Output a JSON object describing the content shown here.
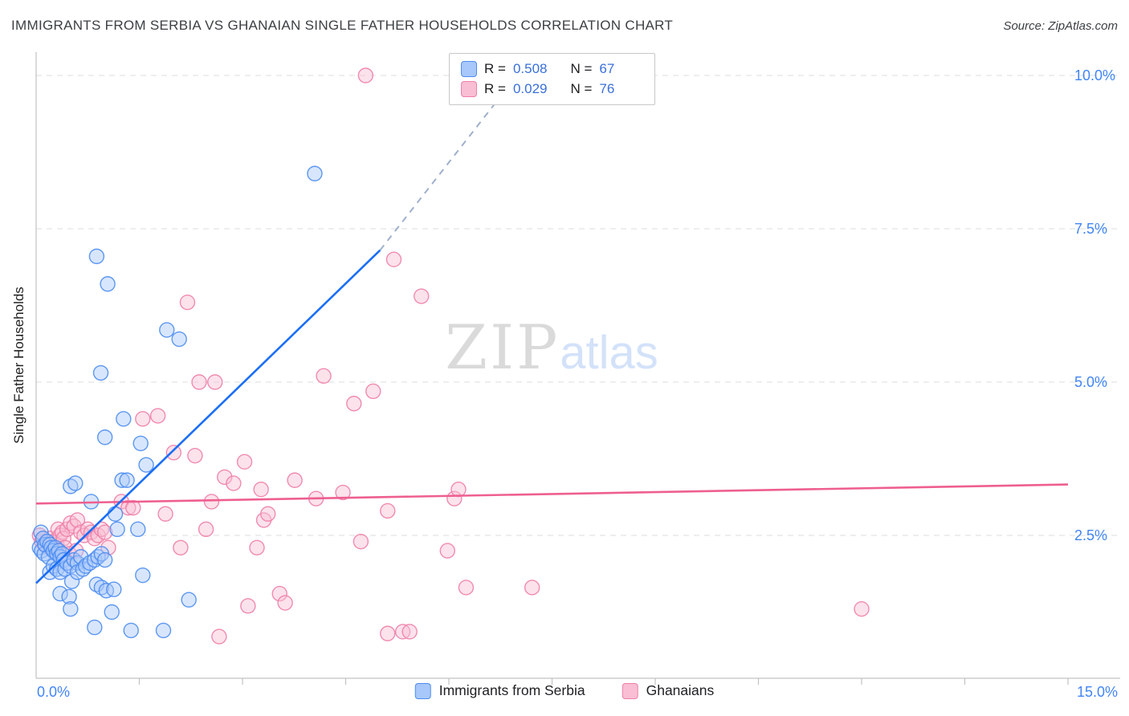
{
  "header": {
    "title": "IMMIGRANTS FROM SERBIA VS GHANAIAN SINGLE FATHER HOUSEHOLDS CORRELATION CHART",
    "source": "Source: ZipAtlas.com"
  },
  "watermark": {
    "part1": "ZIP",
    "part2": "atlas"
  },
  "axes": {
    "y_axis_label": "Single Father Households",
    "y_ticks": [
      {
        "value": 2.5,
        "label": "2.5%"
      },
      {
        "value": 5.0,
        "label": "5.0%"
      },
      {
        "value": 7.5,
        "label": "7.5%"
      },
      {
        "value": 10.0,
        "label": "10.0%"
      }
    ],
    "x_min_label": "0.0%",
    "x_max_label": "15.0%"
  },
  "legend_box": {
    "rows": [
      {
        "r_label": "R = ",
        "r_value": "0.508",
        "n_label": "N = ",
        "n_value": "67"
      },
      {
        "r_label": "R = ",
        "r_value": "0.029",
        "n_label": "N = ",
        "n_value": "76"
      }
    ]
  },
  "bottom_legend": {
    "items": [
      {
        "label": "Immigrants from Serbia"
      },
      {
        "label": "Ghanaians"
      }
    ]
  },
  "chart_data": {
    "type": "scatter",
    "title": "IMMIGRANTS FROM SERBIA VS GHANAIAN SINGLE FATHER HOUSEHOLDS CORRELATION CHART",
    "xlabel": "",
    "ylabel": "Single Father Households",
    "xlim": [
      0,
      15
    ],
    "ylim": [
      0,
      10.4
    ],
    "x_unit": "%",
    "y_unit": "%",
    "grid": true,
    "legend_position": "bottom",
    "x_tick_values": [
      1.5,
      3,
      4.5,
      6,
      7.5,
      9,
      10.5,
      12,
      13.5,
      15
    ],
    "series": [
      {
        "name": "Immigrants from Serbia",
        "R": 0.508,
        "N": 67,
        "marker_fill": "#a8c7fa",
        "marker_stroke": "#4d8df0",
        "trend": {
          "solid": [
            [
              0,
              1.72
            ],
            [
              5.0,
              7.15
            ]
          ],
          "dashed": [
            [
              5.0,
              7.15
            ],
            [
              7.2,
              10.3
            ]
          ],
          "color": "#1a6ef5",
          "dashed_color": "#9fb0cc"
        },
        "points": [
          [
            0.05,
            2.3
          ],
          [
            0.07,
            2.55
          ],
          [
            0.08,
            2.25
          ],
          [
            0.1,
            2.45
          ],
          [
            0.12,
            2.2
          ],
          [
            0.13,
            2.35
          ],
          [
            0.16,
            2.4
          ],
          [
            0.18,
            2.15
          ],
          [
            0.2,
            2.35
          ],
          [
            0.2,
            1.9
          ],
          [
            0.22,
            2.3
          ],
          [
            0.25,
            2.25
          ],
          [
            0.25,
            2.0
          ],
          [
            0.28,
            2.3
          ],
          [
            0.3,
            2.2
          ],
          [
            0.3,
            1.95
          ],
          [
            0.33,
            2.25
          ],
          [
            0.35,
            2.15
          ],
          [
            0.35,
            1.9
          ],
          [
            0.35,
            1.55
          ],
          [
            0.38,
            2.2
          ],
          [
            0.4,
            2.1
          ],
          [
            0.42,
            1.95
          ],
          [
            0.45,
            2.05
          ],
          [
            0.48,
            1.5
          ],
          [
            0.5,
            3.3
          ],
          [
            0.5,
            2.0
          ],
          [
            0.5,
            1.3
          ],
          [
            0.52,
            1.75
          ],
          [
            0.55,
            2.1
          ],
          [
            0.57,
            3.35
          ],
          [
            0.6,
            2.05
          ],
          [
            0.6,
            1.9
          ],
          [
            0.65,
            2.15
          ],
          [
            0.68,
            1.95
          ],
          [
            0.72,
            2.0
          ],
          [
            0.78,
            2.05
          ],
          [
            0.8,
            3.05
          ],
          [
            0.85,
            2.1
          ],
          [
            0.85,
            1.0
          ],
          [
            0.88,
            7.05
          ],
          [
            0.88,
            1.7
          ],
          [
            0.9,
            2.15
          ],
          [
            0.94,
            5.15
          ],
          [
            0.95,
            2.2
          ],
          [
            0.95,
            1.65
          ],
          [
            1.0,
            4.1
          ],
          [
            1.0,
            2.1
          ],
          [
            1.02,
            1.6
          ],
          [
            1.04,
            6.6
          ],
          [
            1.1,
            1.25
          ],
          [
            1.13,
            1.62
          ],
          [
            1.15,
            2.85
          ],
          [
            1.18,
            2.6
          ],
          [
            1.25,
            3.4
          ],
          [
            1.27,
            4.4
          ],
          [
            1.32,
            3.4
          ],
          [
            1.38,
            0.95
          ],
          [
            1.48,
            2.6
          ],
          [
            1.52,
            4.0
          ],
          [
            1.55,
            1.85
          ],
          [
            1.6,
            3.65
          ],
          [
            1.85,
            0.95
          ],
          [
            1.9,
            5.85
          ],
          [
            2.08,
            5.7
          ],
          [
            2.22,
            1.45
          ],
          [
            4.05,
            8.4
          ]
        ]
      },
      {
        "name": "Ghanaians",
        "R": 0.029,
        "N": 76,
        "marker_fill": "#f9bed3",
        "marker_stroke": "#ee7fa8",
        "trend": {
          "solid": [
            [
              0,
              3.02
            ],
            [
              15,
              3.33
            ]
          ],
          "color": "#ee5f90"
        },
        "points": [
          [
            0.05,
            2.5
          ],
          [
            0.08,
            2.4
          ],
          [
            0.1,
            2.45
          ],
          [
            0.12,
            2.35
          ],
          [
            0.15,
            2.4
          ],
          [
            0.18,
            2.3
          ],
          [
            0.2,
            2.45
          ],
          [
            0.22,
            2.35
          ],
          [
            0.25,
            2.4
          ],
          [
            0.28,
            2.3
          ],
          [
            0.3,
            2.35
          ],
          [
            0.32,
            2.6
          ],
          [
            0.35,
            2.5
          ],
          [
            0.38,
            2.55
          ],
          [
            0.4,
            2.45
          ],
          [
            0.42,
            2.3
          ],
          [
            0.45,
            2.6
          ],
          [
            0.48,
            2.2
          ],
          [
            0.5,
            2.7
          ],
          [
            0.55,
            2.65
          ],
          [
            0.58,
            2.25
          ],
          [
            0.6,
            2.75
          ],
          [
            0.65,
            2.55
          ],
          [
            0.7,
            2.5
          ],
          [
            0.75,
            2.6
          ],
          [
            0.8,
            2.55
          ],
          [
            0.85,
            2.45
          ],
          [
            0.9,
            2.5
          ],
          [
            0.95,
            2.6
          ],
          [
            1.0,
            2.55
          ],
          [
            1.05,
            2.3
          ],
          [
            1.24,
            3.05
          ],
          [
            1.34,
            2.95
          ],
          [
            1.41,
            2.95
          ],
          [
            1.55,
            4.4
          ],
          [
            1.77,
            4.45
          ],
          [
            1.88,
            2.85
          ],
          [
            2.0,
            3.85
          ],
          [
            2.1,
            2.3
          ],
          [
            2.2,
            6.3
          ],
          [
            2.31,
            3.8
          ],
          [
            2.37,
            5.0
          ],
          [
            2.47,
            2.6
          ],
          [
            2.55,
            3.05
          ],
          [
            2.6,
            5.0
          ],
          [
            2.66,
            0.85
          ],
          [
            2.74,
            3.45
          ],
          [
            2.87,
            3.35
          ],
          [
            3.03,
            3.7
          ],
          [
            3.08,
            1.35
          ],
          [
            3.21,
            2.3
          ],
          [
            3.27,
            3.25
          ],
          [
            3.31,
            2.75
          ],
          [
            3.37,
            2.85
          ],
          [
            3.54,
            1.55
          ],
          [
            3.62,
            1.4
          ],
          [
            3.76,
            3.4
          ],
          [
            4.07,
            3.1
          ],
          [
            4.18,
            5.1
          ],
          [
            4.46,
            3.2
          ],
          [
            4.62,
            4.65
          ],
          [
            4.72,
            2.4
          ],
          [
            4.79,
            10.0
          ],
          [
            4.9,
            4.85
          ],
          [
            5.11,
            2.9
          ],
          [
            5.11,
            0.9
          ],
          [
            5.2,
            7.0
          ],
          [
            5.33,
            0.93
          ],
          [
            5.43,
            0.93
          ],
          [
            5.6,
            6.4
          ],
          [
            5.98,
            2.25
          ],
          [
            6.08,
            3.1
          ],
          [
            6.14,
            3.25
          ],
          [
            6.25,
            1.65
          ],
          [
            7.21,
            1.65
          ],
          [
            12.0,
            1.3
          ]
        ]
      }
    ]
  }
}
